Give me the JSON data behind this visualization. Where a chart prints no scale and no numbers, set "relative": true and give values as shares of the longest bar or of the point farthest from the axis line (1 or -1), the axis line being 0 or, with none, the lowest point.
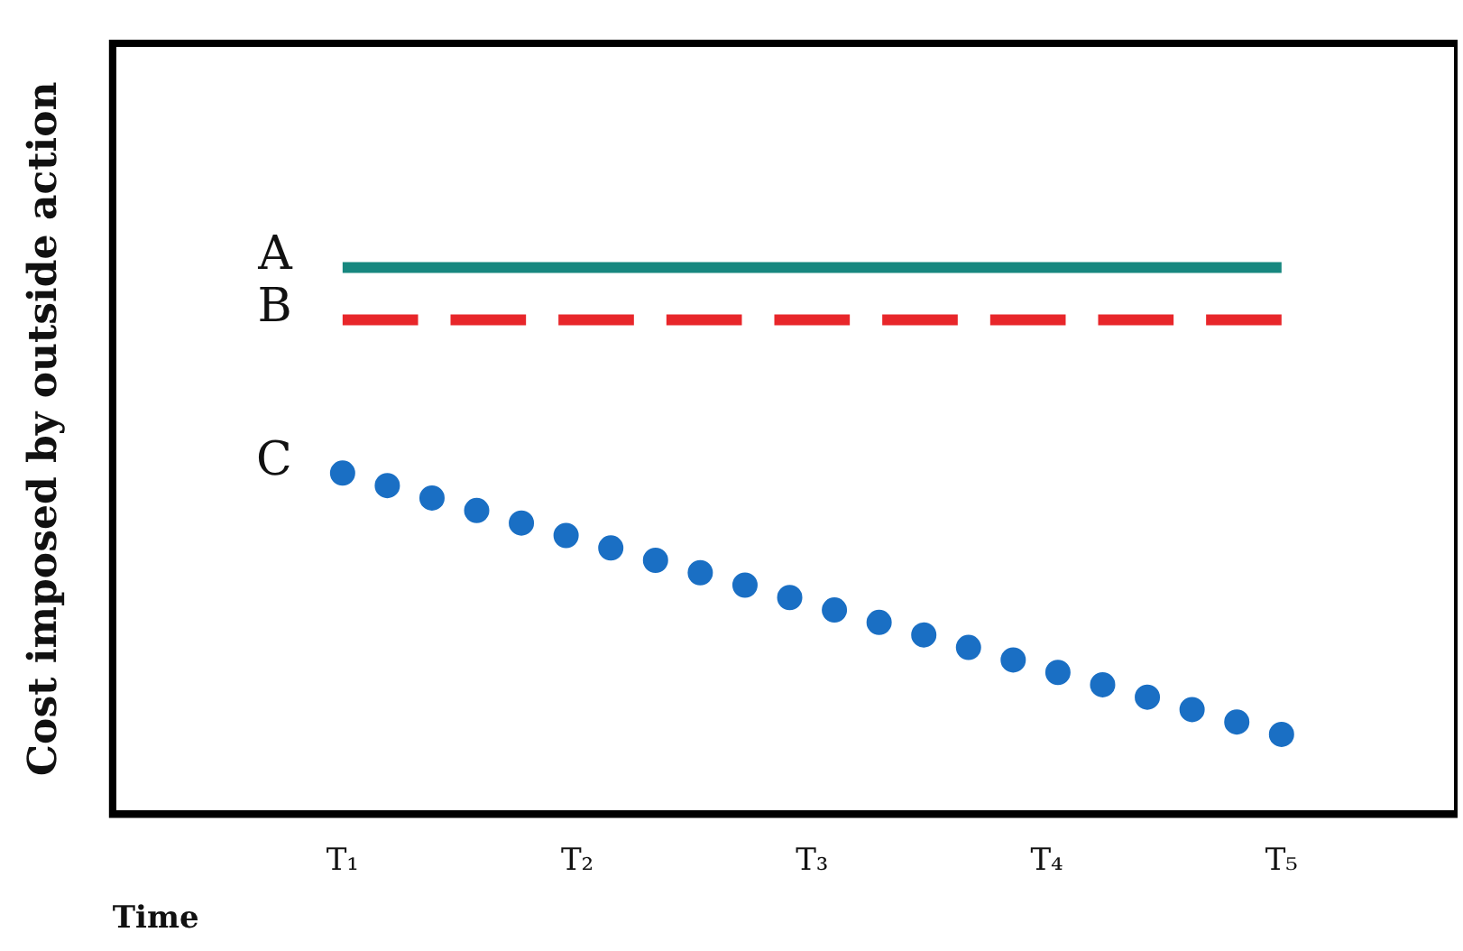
{
  "chart_data": {
    "type": "line",
    "relative": true,
    "xlabel": "Time",
    "ylabel": "Cost imposed by outside action",
    "categories": [
      "T₁",
      "T₂",
      "T₃",
      "T₄",
      "T₅"
    ],
    "series": [
      {
        "name": "A",
        "color": "#17877f",
        "line_style": "solid",
        "values": [
          1,
          1,
          1,
          1,
          1
        ]
      },
      {
        "name": "B",
        "color": "#e8262a",
        "line_style": "dashed",
        "values": [
          0.904,
          0.904,
          0.904,
          0.904,
          0.904
        ]
      },
      {
        "name": "C",
        "color": "#1a6fc4",
        "line_style": "dotted",
        "values": [
          0.624,
          0.504,
          0.385,
          0.265,
          0.146
        ]
      }
    ],
    "legend": false,
    "grid": false,
    "marker": "none"
  }
}
